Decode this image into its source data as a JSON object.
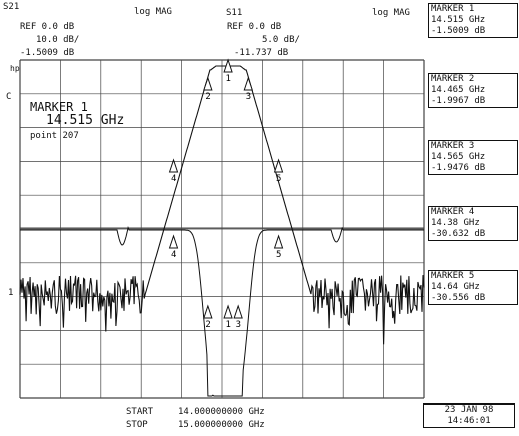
{
  "header": {
    "ch1": {
      "param": "S21",
      "format": "log MAG",
      "ref": "REF 0.0 dB",
      "scale": "10.0 dB/",
      "marker_val": "-1.5009 dB"
    },
    "ch2": {
      "param": "S11",
      "format": "log MAG",
      "ref": "REF 0.0 dB",
      "scale": "5.0 dB/",
      "marker_val": "-11.737 dB"
    }
  },
  "left_labels": {
    "c": "C",
    "hp": "hp",
    "one": "1"
  },
  "marker_readout": {
    "title": "MARKER 1",
    "freq": "14.515 GHz",
    "point": "point 207"
  },
  "markers": [
    {
      "label": "MARKER 1",
      "freq": "14.515 GHz",
      "value": "-1.5009 dB"
    },
    {
      "label": "MARKER 2",
      "freq": "14.465 GHz",
      "value": "-1.9967 dB"
    },
    {
      "label": "MARKER 3",
      "freq": "14.565 GHz",
      "value": "-1.9476 dB"
    },
    {
      "label": "MARKER 4",
      "freq": "14.38 GHz",
      "value": "-30.632 dB"
    },
    {
      "label": "MARKER 5",
      "freq": "14.64 GHz",
      "value": "-30.556 dB"
    }
  ],
  "sweep": {
    "start_label": "START",
    "start_value": "14.000000000 GHz",
    "stop_label": "STOP",
    "stop_value": "15.000000000 GHz"
  },
  "datetime": {
    "date": "23 JAN 98",
    "time": "14:46:01"
  },
  "marker_numbers": [
    "1",
    "2",
    "3",
    "4",
    "5"
  ],
  "colors": {
    "trace": "#111111",
    "grid": "#444444",
    "background": "#ffffff"
  }
}
